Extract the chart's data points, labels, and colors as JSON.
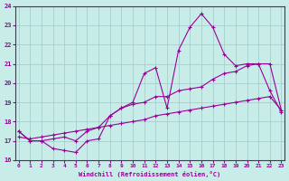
{
  "xlabel": "Windchill (Refroidissement éolien,°C)",
  "background_color": "#c8ede8",
  "grid_color": "#a0c8c8",
  "line_color": "#990099",
  "xlim": [
    0,
    23
  ],
  "ylim": [
    16,
    24
  ],
  "yticks": [
    16,
    17,
    18,
    19,
    20,
    21,
    22,
    23,
    24
  ],
  "xticks": [
    0,
    1,
    2,
    3,
    4,
    5,
    6,
    7,
    8,
    9,
    10,
    11,
    12,
    13,
    14,
    15,
    16,
    17,
    18,
    19,
    20,
    21,
    22,
    23
  ],
  "line1_x": [
    0,
    1,
    2,
    3,
    4,
    5,
    6,
    7,
    8,
    9,
    10,
    11,
    12,
    13,
    14,
    15,
    16,
    17,
    18,
    19,
    20,
    21,
    22,
    23
  ],
  "line1_y": [
    17.5,
    17.0,
    17.0,
    16.6,
    16.5,
    16.4,
    17.0,
    17.1,
    18.3,
    18.7,
    19.0,
    20.5,
    20.8,
    18.7,
    21.7,
    22.9,
    23.6,
    22.9,
    21.5,
    20.9,
    21.0,
    21.0,
    19.6,
    18.5
  ],
  "line2_x": [
    0,
    1,
    2,
    3,
    4,
    5,
    6,
    7,
    8,
    9,
    10,
    11,
    12,
    13,
    14,
    15,
    16,
    17,
    18,
    19,
    20,
    21,
    22,
    23
  ],
  "line2_y": [
    17.5,
    17.0,
    17.0,
    17.1,
    17.2,
    17.0,
    17.5,
    17.7,
    18.3,
    18.7,
    18.9,
    19.0,
    19.3,
    19.3,
    19.6,
    19.7,
    19.8,
    20.2,
    20.5,
    20.6,
    20.9,
    21.0,
    21.0,
    18.6
  ],
  "line3_x": [
    0,
    1,
    2,
    3,
    4,
    5,
    6,
    7,
    8,
    9,
    10,
    11,
    12,
    13,
    14,
    15,
    16,
    17,
    18,
    19,
    20,
    21,
    22,
    23
  ],
  "line3_y": [
    17.2,
    17.1,
    17.2,
    17.3,
    17.4,
    17.5,
    17.6,
    17.7,
    17.8,
    17.9,
    18.0,
    18.1,
    18.3,
    18.4,
    18.5,
    18.6,
    18.7,
    18.8,
    18.9,
    19.0,
    19.1,
    19.2,
    19.3,
    18.6
  ]
}
